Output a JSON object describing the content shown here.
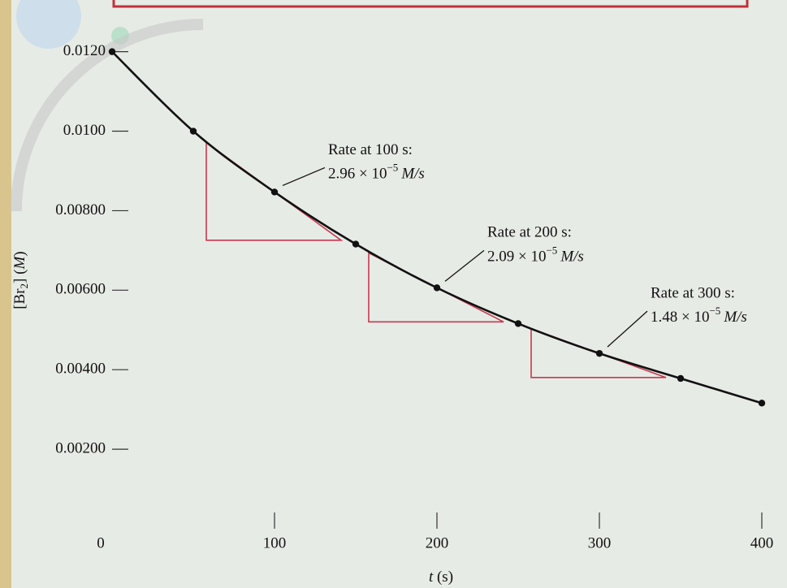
{
  "chart_data": {
    "type": "line",
    "x": [
      0,
      50,
      100,
      150,
      200,
      250,
      300,
      350,
      400
    ],
    "series": [
      {
        "color": "#111111",
        "values": [
          0.012,
          0.01,
          0.00847,
          0.00716,
          0.00606,
          0.00516,
          0.00441,
          0.00378,
          0.00316
        ]
      }
    ],
    "xlim": [
      0,
      415
    ],
    "ylim": [
      0,
      0.0133
    ],
    "xticks": [
      0,
      100,
      200,
      300,
      400
    ],
    "yticks": [
      {
        "value": 0.002,
        "label": "0.00200"
      },
      {
        "value": 0.004,
        "label": "0.00400"
      },
      {
        "value": 0.006,
        "label": "0.00600"
      },
      {
        "value": 0.008,
        "label": "0.00800"
      },
      {
        "value": 0.01,
        "label": "0.0100"
      },
      {
        "value": 0.012,
        "label": "0.0120"
      }
    ],
    "xlabel": [
      "t",
      " (s)"
    ],
    "ylabel": [
      "[Br",
      "2",
      "] (",
      "M",
      ")"
    ],
    "tangent_color": "#c8384f",
    "annotations": [
      {
        "text": "Rate at 100 s:",
        "t": 100,
        "rate": 2.96e-05,
        "rate_label": "2.96 × 10",
        "rate_exponent": "−5",
        "rate_unit": "M/s"
      },
      {
        "text": "Rate at 200 s:",
        "t": 200,
        "rate": 2.09e-05,
        "rate_label": "2.09 × 10",
        "rate_exponent": "−5",
        "rate_unit": "M/s"
      },
      {
        "text": "Rate at 300 s:",
        "t": 300,
        "rate": 1.48e-05,
        "rate_label": "1.48 × 10",
        "rate_exponent": "−5",
        "rate_unit": "M/s"
      }
    ]
  }
}
